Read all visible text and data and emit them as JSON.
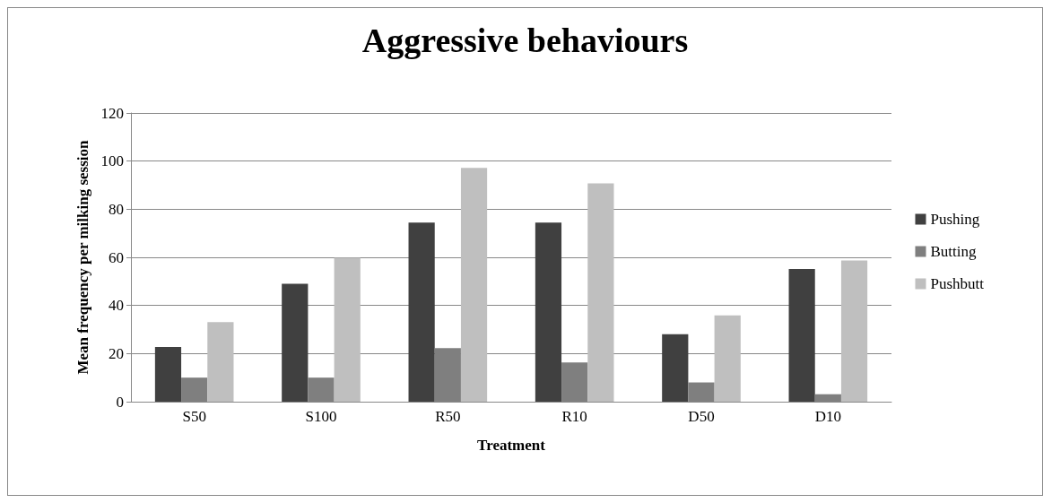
{
  "chart_data": {
    "type": "bar",
    "title": "Aggressive behaviours",
    "xlabel": "Treatment",
    "ylabel": "Mean frequency per milking session",
    "categories": [
      "S50",
      "S100",
      "R50",
      "R10",
      "D50",
      "D10"
    ],
    "series": [
      {
        "name": "Pushing",
        "color": "#404040",
        "values": [
          22.7,
          49,
          74.4,
          74.4,
          28,
          55.2
        ]
      },
      {
        "name": "Butting",
        "color": "#7f7f7f",
        "values": [
          10,
          10,
          22.3,
          16.3,
          8,
          3.1
        ]
      },
      {
        "name": "Pushbutt",
        "color": "#bfbfbf",
        "values": [
          33.1,
          59.8,
          97.2,
          90.7,
          35.9,
          58.7
        ]
      }
    ],
    "ylim": [
      0,
      120
    ],
    "yticks": [
      0,
      20,
      40,
      60,
      80,
      100,
      120
    ],
    "grid": "y",
    "legend": "right"
  }
}
